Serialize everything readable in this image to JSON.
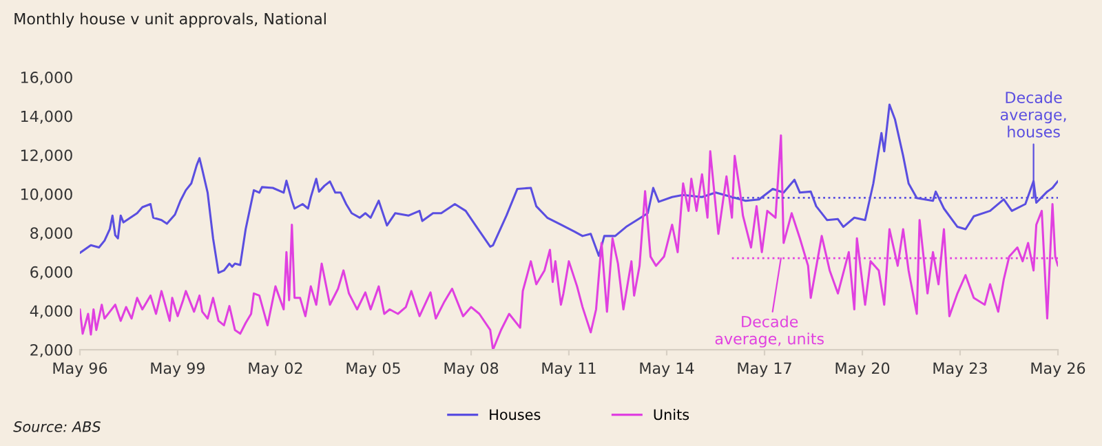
{
  "chart_data": {
    "type": "line",
    "title": "Monthly house v unit approvals, National",
    "annotations": [
      {
        "text": "Decade\naverage,\nhouses",
        "x": "2025-08",
        "y": 9800
      },
      {
        "text": "Decade\naverage, units",
        "x": "2017-11",
        "y": 6700
      },
      "Source: ABS"
    ],
    "xlim": [
      "1996-05",
      "2026-05"
    ],
    "series": [
      {
        "name": "Houses",
        "color": "#5a4ee0",
        "x": [
          "1996-05",
          "1996-09",
          "1996-12",
          "1997-02",
          "1997-04",
          "1997-05",
          "1997-06",
          "1997-07",
          "1997-08",
          "1997-09",
          "1998-02",
          "1998-04",
          "1998-07",
          "1998-08",
          "1998-11",
          "1999-01",
          "1999-04",
          "1999-06",
          "1999-08",
          "1999-10",
          "1999-12",
          "2000-01",
          "2000-02",
          "2000-04",
          "2000-06",
          "2000-08",
          "2000-10",
          "2000-12",
          "2001-01",
          "2001-02",
          "2001-04",
          "2001-06",
          "2001-09",
          "2001-11",
          "2001-12",
          "2002-04",
          "2002-08",
          "2002-09",
          "2002-11",
          "2002-12",
          "2003-03",
          "2003-05",
          "2003-06",
          "2003-08",
          "2003-09",
          "2003-11",
          "2004-01",
          "2004-03",
          "2004-05",
          "2004-07",
          "2004-09",
          "2004-12",
          "2005-02",
          "2005-04",
          "2005-07",
          "2005-10",
          "2006-01",
          "2006-06",
          "2006-10",
          "2006-11",
          "2007-03",
          "2007-06",
          "2007-11",
          "2008-03",
          "2008-07",
          "2008-12",
          "2009-01",
          "2009-06",
          "2009-10",
          "2010-03",
          "2010-05",
          "2010-09",
          "2011-02",
          "2011-07",
          "2011-10",
          "2012-01",
          "2012-04",
          "2012-06",
          "2012-10",
          "2013-02",
          "2013-06",
          "2013-10",
          "2013-12",
          "2014-02",
          "2014-07",
          "2014-11",
          "2015-06",
          "2015-11",
          "2016-05",
          "2016-10",
          "2017-03",
          "2017-08",
          "2017-12",
          "2018-04",
          "2018-06",
          "2018-10",
          "2018-12",
          "2019-04",
          "2019-08",
          "2019-10",
          "2020-02",
          "2020-06",
          "2020-09",
          "2020-12",
          "2021-01",
          "2021-03",
          "2021-05",
          "2021-08",
          "2021-10",
          "2022-01",
          "2022-07",
          "2022-08",
          "2022-11",
          "2023-04",
          "2023-07",
          "2023-10",
          "2024-04",
          "2024-09",
          "2024-12",
          "2025-05",
          "2025-08",
          "2025-09",
          "2026-01",
          "2026-03",
          "2026-05"
        ],
        "values": [
          6970,
          7370,
          7250,
          7600,
          8190,
          8890,
          7880,
          7720,
          8890,
          8540,
          9010,
          9320,
          9480,
          8780,
          8660,
          8470,
          8940,
          9650,
          10190,
          10540,
          11480,
          11840,
          11250,
          10070,
          7720,
          5950,
          6070,
          6420,
          6260,
          6420,
          6350,
          8190,
          10190,
          10070,
          10350,
          10310,
          10070,
          10680,
          9650,
          9250,
          9480,
          9250,
          9840,
          10780,
          10120,
          10420,
          10640,
          10070,
          10070,
          9480,
          9010,
          8780,
          9010,
          8780,
          9650,
          8380,
          9010,
          8890,
          9130,
          8610,
          9010,
          9010,
          9480,
          9130,
          8310,
          7290,
          7360,
          8890,
          10260,
          10310,
          9370,
          8780,
          8420,
          8070,
          7840,
          7950,
          6820,
          7840,
          7840,
          8310,
          8660,
          9010,
          10310,
          9600,
          9840,
          9950,
          9840,
          10070,
          9840,
          9650,
          9720,
          10260,
          10070,
          10730,
          10070,
          10120,
          9370,
          8660,
          8710,
          8310,
          8780,
          8660,
          10540,
          13130,
          12190,
          14590,
          13840,
          11960,
          10540,
          9790,
          9650,
          10120,
          9250,
          8310,
          8190,
          8850,
          9130,
          9720,
          9130,
          9480,
          10660,
          9550,
          10120,
          10310,
          10660
        ]
      },
      {
        "name": "Units",
        "color": "#e040e0",
        "x": [
          "1996-05",
          "1996-06",
          "1996-08",
          "1996-09",
          "1996-10",
          "1996-11",
          "1997-01",
          "1997-02",
          "1997-04",
          "1997-06",
          "1997-08",
          "1997-10",
          "1997-12",
          "1998-02",
          "1998-04",
          "1998-07",
          "1998-09",
          "1998-11",
          "1999-02",
          "1999-03",
          "1999-05",
          "1999-07",
          "1999-08",
          "1999-11",
          "2000-01",
          "2000-02",
          "2000-04",
          "2000-06",
          "2000-08",
          "2000-10",
          "2000-12",
          "2001-02",
          "2001-04",
          "2001-06",
          "2001-08",
          "2001-09",
          "2001-11",
          "2002-02",
          "2002-05",
          "2002-08",
          "2002-09",
          "2002-10",
          "2002-11",
          "2002-12",
          "2003-02",
          "2003-04",
          "2003-06",
          "2003-08",
          "2003-10",
          "2004-01",
          "2004-04",
          "2004-06",
          "2004-08",
          "2004-11",
          "2005-02",
          "2005-04",
          "2005-07",
          "2005-09",
          "2005-11",
          "2006-02",
          "2006-05",
          "2006-07",
          "2006-10",
          "2007-02",
          "2007-04",
          "2007-07",
          "2007-10",
          "2008-02",
          "2008-05",
          "2008-08",
          "2008-12",
          "2009-01",
          "2009-04",
          "2009-07",
          "2009-11",
          "2009-12",
          "2010-03",
          "2010-05",
          "2010-08",
          "2010-10",
          "2010-11",
          "2010-12",
          "2011-02",
          "2011-03",
          "2011-05",
          "2011-08",
          "2011-10",
          "2012-01",
          "2012-03",
          "2012-05",
          "2012-07",
          "2012-09",
          "2012-11",
          "2013-01",
          "2013-04",
          "2013-05",
          "2013-07",
          "2013-09",
          "2013-11",
          "2014-01",
          "2014-04",
          "2014-07",
          "2014-09",
          "2014-11",
          "2015-01",
          "2015-02",
          "2015-04",
          "2015-06",
          "2015-08",
          "2015-09",
          "2015-12",
          "2016-03",
          "2016-05",
          "2016-06",
          "2016-08",
          "2016-09",
          "2016-12",
          "2017-02",
          "2017-04",
          "2017-06",
          "2017-09",
          "2017-11",
          "2017-12",
          "2018-03",
          "2018-06",
          "2018-09",
          "2018-10",
          "2019-02",
          "2019-05",
          "2019-08",
          "2019-12",
          "2020-02",
          "2020-03",
          "2020-06",
          "2020-08",
          "2020-11",
          "2021-01",
          "2021-03",
          "2021-06",
          "2021-08",
          "2021-10",
          "2022-01",
          "2022-02",
          "2022-05",
          "2022-07",
          "2022-09",
          "2022-11",
          "2023-01",
          "2023-04",
          "2023-07",
          "2023-10",
          "2024-02",
          "2024-04",
          "2024-07",
          "2024-09",
          "2024-11",
          "2025-02",
          "2025-04",
          "2025-06",
          "2025-08",
          "2025-09",
          "2025-11",
          "2026-01",
          "2026-03",
          "2026-04",
          "2026-05"
        ],
        "values": [
          4070,
          2820,
          3840,
          2780,
          4070,
          3010,
          4310,
          3600,
          3950,
          4310,
          3480,
          4190,
          3600,
          4660,
          4070,
          4780,
          3840,
          5010,
          3480,
          4660,
          3720,
          4540,
          5010,
          3950,
          4780,
          3950,
          3600,
          4660,
          3480,
          3250,
          4240,
          3010,
          2820,
          3370,
          3840,
          4890,
          4780,
          3250,
          5250,
          4070,
          7010,
          4540,
          8420,
          4660,
          4660,
          3720,
          5250,
          4310,
          6420,
          4310,
          5130,
          6070,
          4890,
          4070,
          4940,
          4070,
          5250,
          3840,
          4070,
          3840,
          4190,
          5010,
          3720,
          4940,
          3600,
          4420,
          5130,
          3720,
          4190,
          3840,
          3010,
          2000,
          3010,
          3840,
          3130,
          5010,
          6540,
          5360,
          6070,
          7130,
          5480,
          6540,
          4310,
          4890,
          6540,
          5250,
          4190,
          2890,
          4070,
          7480,
          3950,
          7720,
          6420,
          4070,
          6540,
          4780,
          6310,
          10140,
          6780,
          6310,
          6780,
          8420,
          7010,
          10540,
          9130,
          10780,
          9130,
          11010,
          8780,
          12190,
          7950,
          10900,
          8780,
          11950,
          10070,
          8890,
          7250,
          9370,
          7010,
          9130,
          8780,
          13010,
          7480,
          9010,
          7720,
          6310,
          4660,
          7840,
          6070,
          4890,
          7010,
          4070,
          7720,
          4310,
          6540,
          6070,
          4310,
          8190,
          6310,
          8190,
          6070,
          3840,
          8660,
          4890,
          7010,
          5360,
          8190,
          3720,
          4890,
          5830,
          4660,
          4310,
          5360,
          3950,
          5600,
          6780,
          7250,
          6540,
          7480,
          6070,
          8420,
          9130,
          3600,
          9480,
          6780,
          6310
        ]
      },
      {
        "type": "line",
        "color": "#5a4ee0",
        "line_style": "dotted",
        "x": [
          "2016-05",
          "2026-05"
        ],
        "values": [
          9800,
          9800
        ]
      },
      {
        "type": "line",
        "color": "#e040e0",
        "line_style": "dotted",
        "x": [
          "2016-05",
          "2026-05"
        ],
        "values": [
          6700,
          6700
        ]
      }
    ],
    "ylim": [
      2000,
      16000
    ],
    "yticks": [
      {
        "value": 2000,
        "label": "2,000"
      },
      {
        "value": 4000,
        "label": "4,000"
      },
      {
        "value": 6000,
        "label": "6,000"
      },
      {
        "value": 8000,
        "label": "8,000"
      },
      {
        "value": 10000,
        "label": "10,000"
      },
      {
        "value": 12000,
        "label": "12,000"
      },
      {
        "value": 14000,
        "label": "14,000"
      },
      {
        "value": 16000,
        "label": "16,000"
      }
    ],
    "xticks": [
      {
        "value": "1996-05",
        "label": "May 96"
      },
      {
        "value": "1999-05",
        "label": "May 99"
      },
      {
        "value": "2002-05",
        "label": "May 02"
      },
      {
        "value": "2005-05",
        "label": "May 05"
      },
      {
        "value": "2008-05",
        "label": "May 08"
      },
      {
        "value": "2011-05",
        "label": "May 11"
      },
      {
        "value": "2014-05",
        "label": "May 14"
      },
      {
        "value": "2017-05",
        "label": "May 17"
      },
      {
        "value": "2020-05",
        "label": "May 20"
      },
      {
        "value": "2023-05",
        "label": "May 23"
      },
      {
        "value": "2026-05",
        "label": "May 26"
      }
    ],
    "legend": "bottom",
    "grid": false,
    "marker": "none",
    "line_style": "solid"
  }
}
